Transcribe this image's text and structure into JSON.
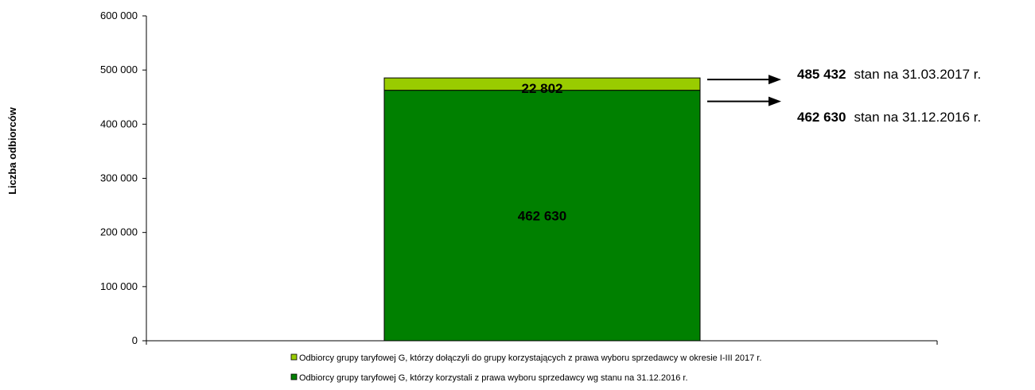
{
  "chart_data": {
    "type": "bar",
    "stacked": true,
    "categories": [
      ""
    ],
    "series": [
      {
        "name": "Odbiorcy grupy taryfowej G, którzy korzystali z prawa wyboru sprzedawcy wg stanu na 31.12.2016 r.",
        "values": [
          462630
        ],
        "labels": [
          "462 630"
        ],
        "color": "#008000"
      },
      {
        "name": "Odbiorcy grupy taryfowej G, którzy dołączyli do grupy korzystających z  prawa wyboru sprzedawcy w okresie I-III 2017 r.",
        "values": [
          22802
        ],
        "labels": [
          "22 802"
        ],
        "color": "#99CC00"
      }
    ],
    "ylabel": "Liczba odbiorców",
    "xlabel": "",
    "ylim": [
      0,
      600000
    ],
    "yticks": [
      0,
      100000,
      200000,
      300000,
      400000,
      500000,
      600000
    ],
    "ytick_labels": [
      "0",
      "100 000",
      "200 000",
      "300 000",
      "400 000",
      "500 000",
      "600 000"
    ],
    "grid": false,
    "legend_position": "bottom",
    "annotations": [
      {
        "value_label": "485 432",
        "text": "stan na 31.03.2017 r.",
        "y": 485432
      },
      {
        "value_label": "462 630",
        "text": "stan na 31.12.2016 r.",
        "y": 462630
      }
    ]
  }
}
